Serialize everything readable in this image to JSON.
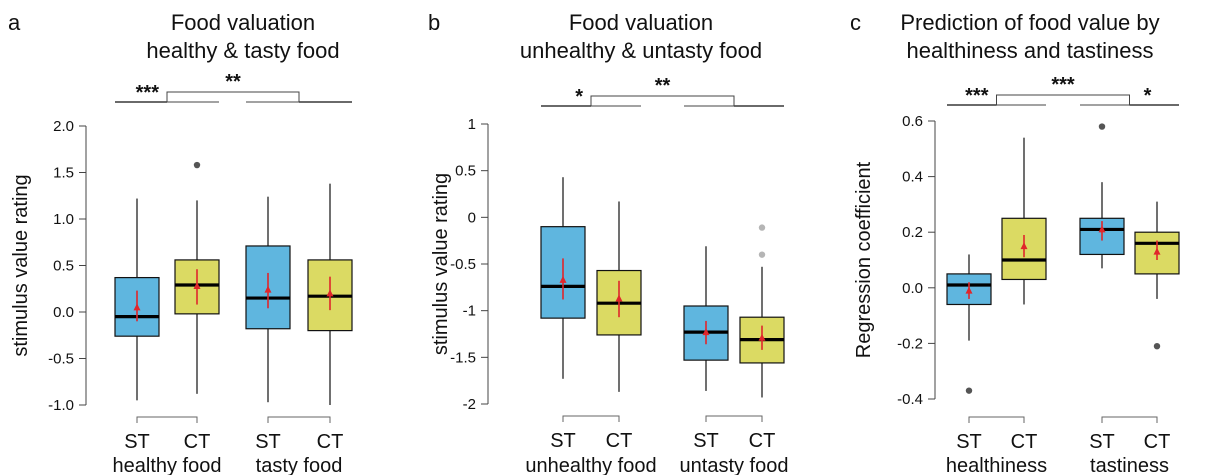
{
  "colors": {
    "ST": "#5fb6df",
    "CT": "#dbda63",
    "mean": "#e0262b",
    "outlier_dark": "#555555",
    "outlier_light": "#b5b5b5"
  },
  "chart_data": [
    {
      "type": "box",
      "panel_letter": "a",
      "title": [
        "Food valuation",
        "healthy & tasty food"
      ],
      "ylabel": "stimulus value rating",
      "ylim": [
        -1.0,
        2.0
      ],
      "yticks": [
        -1.0,
        -0.5,
        0.0,
        0.5,
        1.0,
        1.5,
        2.0
      ],
      "ytick_labels": [
        "-1.0",
        "-0.5",
        "0.0",
        "0.5",
        "1.0",
        "1.5",
        "2.0"
      ],
      "categories": [
        "ST",
        "CT",
        "ST",
        "CT"
      ],
      "groups": [
        "healthy food",
        "tasty food"
      ],
      "boxes": [
        {
          "cat": "ST",
          "min": -0.95,
          "q1": -0.26,
          "median": -0.05,
          "q3": 0.37,
          "max": 1.22,
          "mean": 0.05,
          "ci": [
            -0.1,
            0.23
          ],
          "outliers": []
        },
        {
          "cat": "CT",
          "min": -0.88,
          "q1": -0.02,
          "median": 0.29,
          "q3": 0.56,
          "max": 1.2,
          "mean": 0.28,
          "ci": [
            0.08,
            0.46
          ],
          "outliers": [
            {
              "v": 1.58,
              "shade": "dark"
            }
          ]
        },
        {
          "cat": "ST",
          "min": -0.97,
          "q1": -0.18,
          "median": 0.15,
          "q3": 0.71,
          "max": 1.24,
          "mean": 0.24,
          "ci": [
            0.04,
            0.42
          ],
          "outliers": []
        },
        {
          "cat": "CT",
          "min": -1.0,
          "q1": -0.2,
          "median": 0.17,
          "q3": 0.56,
          "max": 1.38,
          "mean": 0.2,
          "ci": [
            0.02,
            0.38
          ],
          "outliers": []
        }
      ],
      "significance": [
        {
          "label": "***",
          "type": "pair",
          "pair": [
            0,
            1
          ]
        },
        {
          "label": "**",
          "type": "pair",
          "pair": [
            2,
            3
          ]
        },
        {
          "label": "**",
          "type": "bridge",
          "pair": [
            0,
            1
          ]
        }
      ]
    },
    {
      "type": "box",
      "panel_letter": "b",
      "title": [
        "Food valuation",
        "unhealthy & untasty food"
      ],
      "ylabel": "stimulus value rating",
      "ylim": [
        -2.0,
        1.0
      ],
      "yticks": [
        -2.0,
        -1.5,
        -1.0,
        -0.5,
        0.0,
        0.5,
        1.0
      ],
      "ytick_labels": [
        "-2",
        "-1.5",
        "-1",
        "-0.5",
        "0",
        "0.5",
        "1"
      ],
      "categories": [
        "ST",
        "CT",
        "ST",
        "CT"
      ],
      "groups": [
        "unhealthy food",
        "untasty food"
      ],
      "boxes": [
        {
          "cat": "ST",
          "min": -1.73,
          "q1": -1.08,
          "median": -0.74,
          "q3": -0.1,
          "max": 0.43,
          "mean": -0.67,
          "ci": [
            -0.88,
            -0.44
          ],
          "outliers": []
        },
        {
          "cat": "CT",
          "min": -1.87,
          "q1": -1.26,
          "median": -0.92,
          "q3": -0.57,
          "max": 0.17,
          "mean": -0.87,
          "ci": [
            -1.07,
            -0.68
          ],
          "outliers": []
        },
        {
          "cat": "ST",
          "min": -1.86,
          "q1": -1.53,
          "median": -1.23,
          "q3": -0.95,
          "max": -0.31,
          "mean": -1.23,
          "ci": [
            -1.36,
            -1.11
          ],
          "outliers": []
        },
        {
          "cat": "CT",
          "min": -1.93,
          "q1": -1.56,
          "median": -1.31,
          "q3": -1.07,
          "max": -0.53,
          "mean": -1.29,
          "ci": [
            -1.42,
            -1.16
          ],
          "outliers": [
            {
              "v": -0.4,
              "shade": "light"
            },
            {
              "v": -0.11,
              "shade": "light"
            }
          ]
        }
      ],
      "significance": [
        {
          "label": "*",
          "type": "pair",
          "pair": [
            0,
            1
          ]
        },
        {
          "label": "**",
          "type": "pair",
          "pair": [
            2,
            3
          ]
        },
        {
          "label": "**",
          "type": "bridge",
          "pair": [
            0,
            1
          ]
        }
      ]
    },
    {
      "type": "box",
      "panel_letter": "c",
      "title": [
        "Prediction of food value by",
        "healthiness and tastiness"
      ],
      "ylabel": "Regression coefficient",
      "ylim": [
        -0.4,
        0.6
      ],
      "yticks": [
        -0.4,
        -0.2,
        0.0,
        0.2,
        0.4,
        0.6
      ],
      "ytick_labels": [
        "-0.4",
        "-0.2",
        "0.0",
        "0.2",
        "0.4",
        "0.6"
      ],
      "categories": [
        "ST",
        "CT",
        "ST",
        "CT"
      ],
      "groups": [
        "healthiness",
        "tastiness"
      ],
      "boxes": [
        {
          "cat": "ST",
          "min": -0.19,
          "q1": -0.06,
          "median": 0.01,
          "q3": 0.05,
          "max": 0.12,
          "mean": -0.01,
          "ci": [
            -0.04,
            0.02
          ],
          "outliers": [
            {
              "v": -0.37,
              "shade": "dark"
            }
          ]
        },
        {
          "cat": "CT",
          "min": -0.06,
          "q1": 0.03,
          "median": 0.1,
          "q3": 0.25,
          "max": 0.54,
          "mean": 0.15,
          "ci": [
            0.11,
            0.19
          ],
          "outliers": []
        },
        {
          "cat": "ST",
          "min": 0.07,
          "q1": 0.12,
          "median": 0.21,
          "q3": 0.25,
          "max": 0.38,
          "mean": 0.21,
          "ci": [
            0.17,
            0.24
          ],
          "outliers": [
            {
              "v": 0.58,
              "shade": "dark"
            }
          ]
        },
        {
          "cat": "CT",
          "min": -0.04,
          "q1": 0.05,
          "median": 0.16,
          "q3": 0.2,
          "max": 0.31,
          "mean": 0.13,
          "ci": [
            0.1,
            0.17
          ],
          "outliers": [
            {
              "v": -0.21,
              "shade": "dark"
            }
          ]
        }
      ],
      "significance": [
        {
          "label": "***",
          "type": "pair",
          "pair": [
            0,
            1
          ]
        },
        {
          "label": "*",
          "type": "pair",
          "pair": [
            2,
            3
          ]
        },
        {
          "label": "***",
          "type": "bridge",
          "pair": [
            0,
            1
          ]
        }
      ]
    }
  ]
}
